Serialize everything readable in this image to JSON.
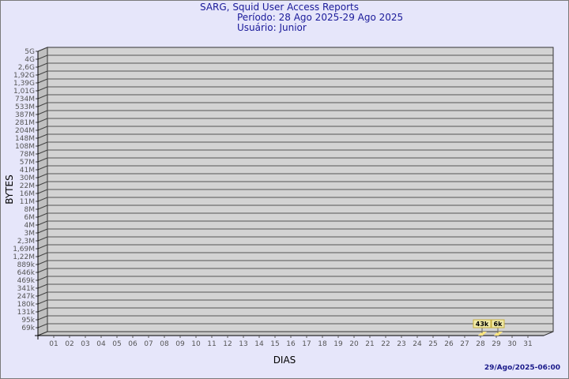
{
  "chart_data": {
    "type": "bar",
    "title": "SARG, Squid User Access Reports",
    "subtitle": [
      "Período: 28 Ago 2025-29 Ago 2025",
      "Usuário: Junior"
    ],
    "xlabel": "DIAS",
    "ylabel": "BYTES",
    "categories": [
      "01",
      "02",
      "03",
      "04",
      "05",
      "06",
      "07",
      "08",
      "09",
      "10",
      "11",
      "12",
      "13",
      "14",
      "15",
      "16",
      "17",
      "18",
      "19",
      "20",
      "21",
      "22",
      "23",
      "24",
      "25",
      "26",
      "27",
      "28",
      "29",
      "30",
      "31"
    ],
    "values": [
      null,
      null,
      null,
      null,
      null,
      null,
      null,
      null,
      null,
      null,
      null,
      null,
      null,
      null,
      null,
      null,
      null,
      null,
      null,
      null,
      null,
      null,
      null,
      null,
      null,
      null,
      null,
      "43k",
      "6k",
      null,
      null
    ],
    "data_labels": {
      "28": "43k",
      "29": "6k"
    },
    "y_scale": "log",
    "y_ticks": [
      "69k",
      "95k",
      "131k",
      "180k",
      "247k",
      "341k",
      "469k",
      "646k",
      "889k",
      "1,22M",
      "1,69M",
      "2,3M",
      "3M",
      "4M",
      "6M",
      "8M",
      "11M",
      "16M",
      "22M",
      "30M",
      "41M",
      "57M",
      "78M",
      "108M",
      "148M",
      "204M",
      "281M",
      "387M",
      "533M",
      "734M",
      "1,01G",
      "1,39G",
      "1,92G",
      "2,6G",
      "4G",
      "5G"
    ],
    "grid": true,
    "colors": {
      "background": "#e6e6fa",
      "plot": "#d3d3d3",
      "bar": "#ffe680",
      "label_bg": "#f0eaa8",
      "title": "#1a1a9a"
    }
  },
  "footer": {
    "timestamp": "29/Ago/2025-06:00"
  }
}
